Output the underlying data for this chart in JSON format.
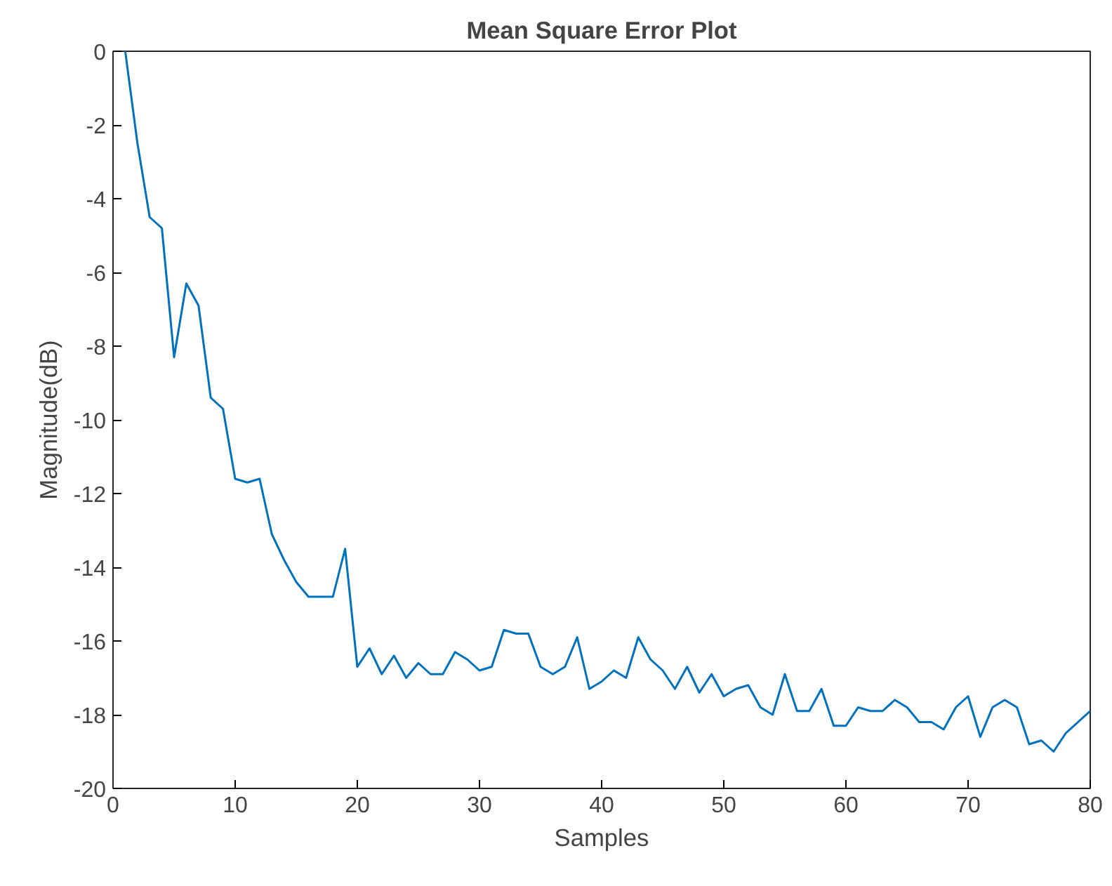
{
  "chart_data": {
    "type": "line",
    "title": "Mean Square Error Plot",
    "xlabel": "Samples",
    "ylabel": "Magnitude(dB)",
    "x": [
      1,
      2,
      3,
      4,
      5,
      6,
      7,
      8,
      9,
      10,
      11,
      12,
      13,
      14,
      15,
      16,
      17,
      18,
      19,
      20,
      21,
      22,
      23,
      24,
      25,
      26,
      27,
      28,
      29,
      30,
      31,
      32,
      33,
      34,
      35,
      36,
      37,
      38,
      39,
      40,
      41,
      42,
      43,
      44,
      45,
      46,
      47,
      48,
      49,
      50,
      51,
      52,
      53,
      54,
      55,
      56,
      57,
      58,
      59,
      60,
      61,
      62,
      63,
      64,
      65,
      66,
      67,
      68,
      69,
      70,
      71,
      72,
      73,
      74,
      75,
      76,
      77,
      78,
      79,
      80
    ],
    "series": [
      {
        "color": "#0072bd",
        "values": [
          0,
          -2.5,
          -4.5,
          -4.8,
          -8.3,
          -6.3,
          -6.9,
          -9.4,
          -9.7,
          -11.6,
          -11.7,
          -11.6,
          -13.1,
          -13.8,
          -14.4,
          -14.8,
          -14.8,
          -14.8,
          -13.5,
          -16.7,
          -16.2,
          -16.9,
          -16.4,
          -17.0,
          -16.6,
          -16.9,
          -16.9,
          -16.3,
          -16.5,
          -16.8,
          -16.7,
          -15.7,
          -15.8,
          -15.8,
          -16.7,
          -16.9,
          -16.7,
          -15.9,
          -17.3,
          -17.1,
          -16.8,
          -17.0,
          -15.9,
          -16.5,
          -16.8,
          -17.3,
          -16.7,
          -17.4,
          -16.9,
          -17.5,
          -17.3,
          -17.2,
          -17.8,
          -18.0,
          -16.9,
          -17.9,
          -17.9,
          -17.3,
          -18.3,
          -18.3,
          -17.8,
          -17.9,
          -17.9,
          -17.6,
          -17.8,
          -18.2,
          -18.2,
          -18.4,
          -17.8,
          -17.5,
          -18.6,
          -17.8,
          -17.6,
          -17.8,
          -18.8,
          -18.7,
          -19.0,
          -18.5,
          -18.2,
          -17.9
        ]
      }
    ],
    "xlim": [
      0,
      80
    ],
    "ylim": [
      -20,
      0
    ],
    "xticks": [
      0,
      10,
      20,
      30,
      40,
      50,
      60,
      70,
      80
    ],
    "yticks": [
      -20,
      -18,
      -16,
      -14,
      -12,
      -10,
      -8,
      -6,
      -4,
      -2,
      0
    ],
    "grid": false,
    "line_style": "solid",
    "marker": "none"
  }
}
